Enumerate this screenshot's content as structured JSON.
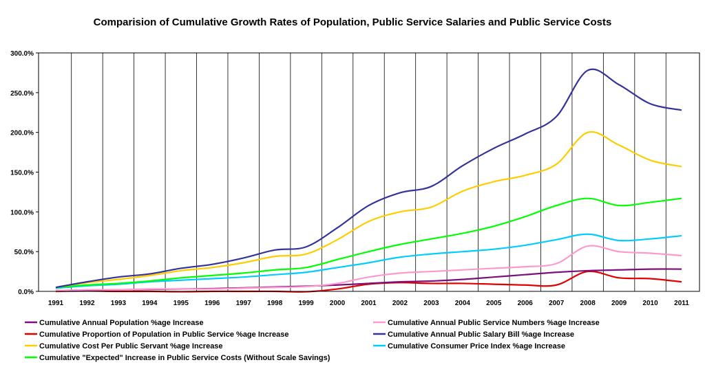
{
  "chart_data": {
    "type": "line",
    "title": "Comparision of Cumulative Growth Rates of Population, Public Service Salaries and Public Service Costs",
    "xlabel": "",
    "ylabel": "",
    "x": [
      "1991",
      "1992",
      "1993",
      "1994",
      "1995",
      "1996",
      "1997",
      "1998",
      "1999",
      "2000",
      "2001",
      "2002",
      "2003",
      "2004",
      "2005",
      "2006",
      "2007",
      "2008",
      "2009",
      "2010",
      "2011"
    ],
    "ylim": [
      0,
      300
    ],
    "yticks": [
      0,
      50,
      100,
      150,
      200,
      250,
      300
    ],
    "ytick_labels": [
      "0.0%",
      "50.0%",
      "100.0%",
      "150.0%",
      "200.0%",
      "250.0%",
      "300.0%"
    ],
    "grid": "vertical gridlines at each year",
    "legend_position": "bottom",
    "series": [
      {
        "name": "Cumulative Annual Population %age Increase",
        "color": "#7b0f7b",
        "values": [
          1,
          1.5,
          2,
          2.5,
          3,
          3.5,
          4.5,
          5.5,
          6.5,
          8,
          10,
          12,
          13,
          15,
          18,
          21,
          24,
          26,
          27,
          28,
          28
        ]
      },
      {
        "name": "Cumulative Annual Public Service Numbers %age Increase",
        "color": "#ff99cc",
        "values": [
          1,
          2,
          2,
          3,
          3,
          3,
          4,
          5,
          6,
          10,
          18,
          23,
          25,
          27,
          29,
          31,
          35,
          57,
          50,
          48,
          45
        ]
      },
      {
        "name": "Cumulative Proportion of Population in Public Service %age Increase",
        "color": "#e00000",
        "values": [
          0,
          0.5,
          0,
          0,
          -0.5,
          0,
          0,
          0,
          -0.5,
          3,
          9,
          11,
          10,
          10,
          9,
          8,
          8,
          25,
          17,
          16,
          12
        ]
      },
      {
        "name": "Cumulative Annual Public Salary Bill %age Increase",
        "color": "#333399",
        "values": [
          5,
          12,
          18,
          22,
          29,
          34,
          42,
          52,
          56,
          80,
          108,
          124,
          132,
          158,
          180,
          198,
          220,
          278,
          260,
          236,
          228
        ]
      },
      {
        "name": "Cumulative Cost Per Public Servant %age Increase",
        "color": "#ffcc00",
        "values": [
          5,
          11,
          15,
          20,
          26,
          30,
          36,
          44,
          47,
          65,
          88,
          100,
          106,
          126,
          138,
          146,
          160,
          200,
          184,
          165,
          157
        ]
      },
      {
        "name": "Cumulative Consumer Price Index %age Increase",
        "color": "#00ccff",
        "values": [
          4,
          7,
          9,
          12,
          14,
          16,
          18,
          21,
          24,
          30,
          36,
          43,
          47,
          50,
          53,
          58,
          65,
          72,
          64,
          66,
          70
        ]
      },
      {
        "name": "Cumulative \"Expected\" Increase in Public Service Costs (Without Scale Savings)",
        "color": "#00ff00",
        "values": [
          5,
          8,
          10,
          13,
          17,
          20,
          23,
          27,
          30,
          40,
          50,
          59,
          66,
          73,
          82,
          94,
          108,
          117,
          108,
          112,
          117
        ]
      }
    ],
    "legend_order": [
      0,
      1,
      2,
      3,
      4,
      5,
      6
    ]
  }
}
